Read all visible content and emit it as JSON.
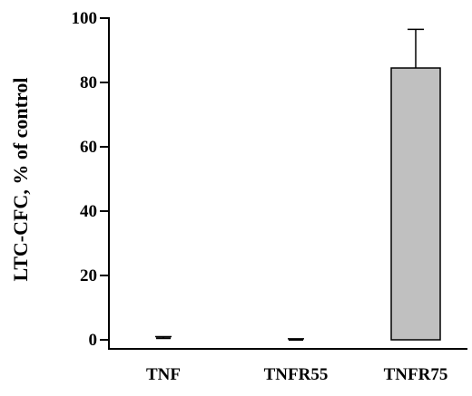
{
  "chart_data": {
    "type": "bar",
    "title": "",
    "xlabel": "",
    "ylabel": "LTC-CFC, % of control",
    "categories": [
      "TNF",
      "TNFR55",
      "TNFR75"
    ],
    "values": [
      0.5,
      0,
      84.5
    ],
    "error": [
      0.5,
      0.3,
      12
    ],
    "ylim": [
      0,
      100
    ],
    "yticks": [
      "0",
      "20",
      "40",
      "60",
      "80",
      "100"
    ],
    "bar_color": "#c0c0c0",
    "grid": false,
    "legend": "none"
  }
}
